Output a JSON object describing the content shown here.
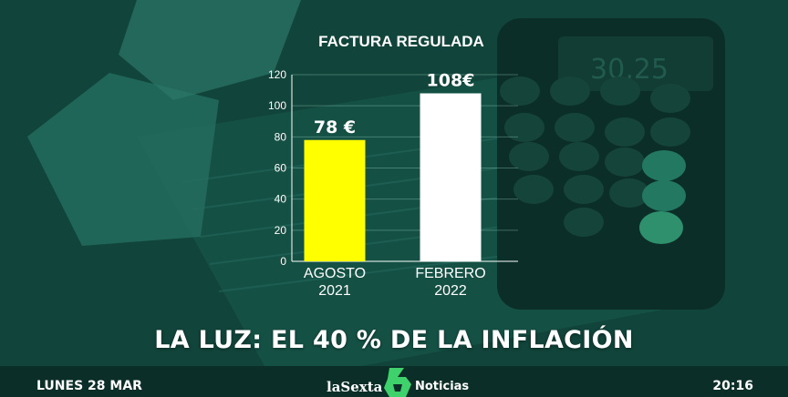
{
  "chart_data": {
    "type": "bar",
    "title": "FACTURA REGULADA",
    "categories": [
      [
        "AGOSTO",
        "2021"
      ],
      [
        "FEBRERO",
        "2022"
      ]
    ],
    "values": [
      78,
      108
    ],
    "data_labels": [
      "78 €",
      "108€"
    ],
    "bar_colors": [
      "#ffff00",
      "#ffffff"
    ],
    "ylim": [
      0,
      120
    ],
    "yticks": [
      0,
      20,
      40,
      60,
      80,
      100,
      120
    ],
    "grid": true
  },
  "headline": "LA LUZ: EL 40 % DE LA INFLACIÓN",
  "footer": {
    "date": "LUNES 28 MAR",
    "brand": "laSexta",
    "section": "Noticias",
    "time": "20:16",
    "logo_color": "#3fd16b"
  }
}
